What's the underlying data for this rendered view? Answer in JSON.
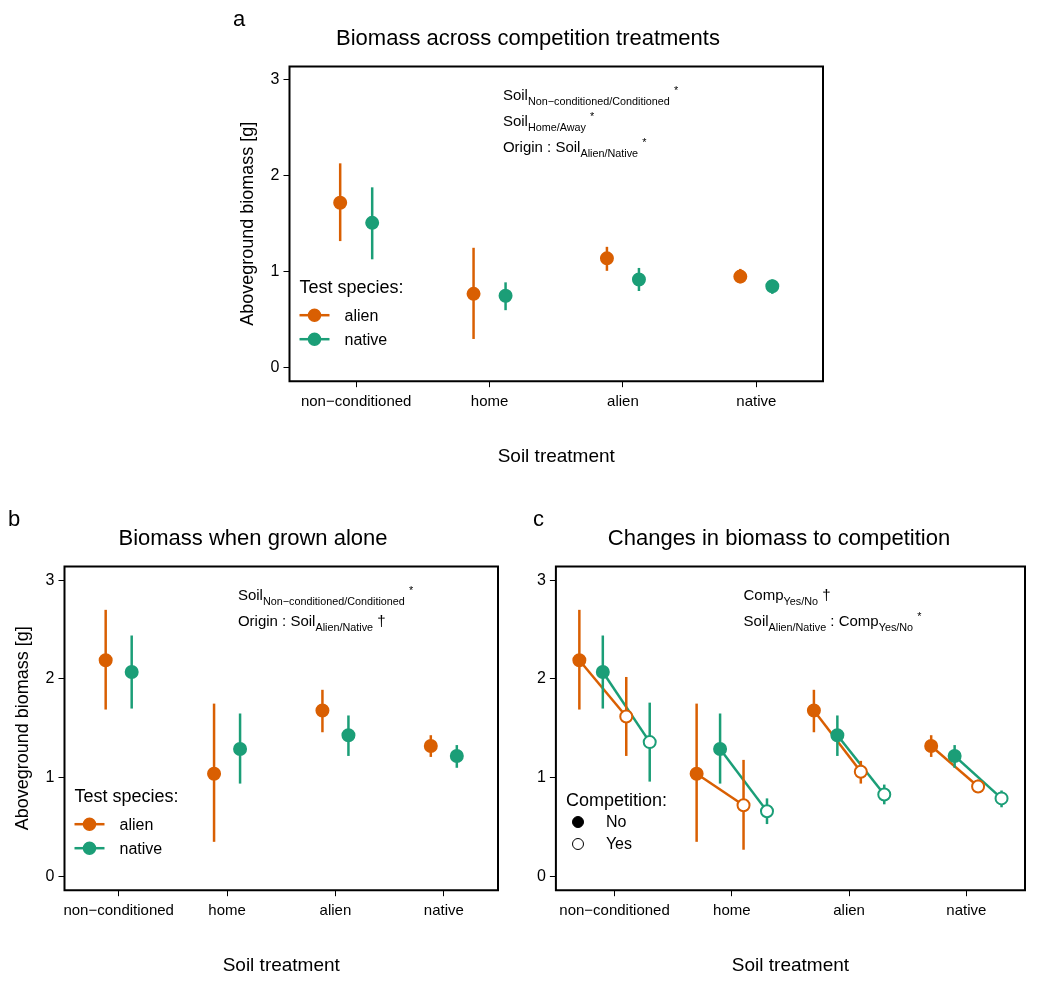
{
  "chart_data": [
    {
      "type": "scatter",
      "title": "Biomass across competition treatments",
      "xlabel": "Soil treatment",
      "ylabel": "Aboveground biomass [g]",
      "legend_title": "Test species:",
      "legend": "bottom left",
      "marker": "circle",
      "annotations": [
        "a",
        "Soil$_{Non−conditioned/Conditioned}$ $^{*}$",
        "Soil$_{Home/Away}$ $^{*}$",
        "Origin : Soil$_{Alien/Native}$ $^{*}$"
      ],
      "categories": [
        "non−conditioned",
        "home",
        "alien",
        "native"
      ],
      "ylim": [
        -0.14,
        3.14
      ],
      "yticks": [
        0,
        1,
        2,
        3
      ],
      "series": [
        {
          "name": "alien",
          "color": "#d95f02",
          "values": [
            1.72,
            0.77,
            1.14,
            0.95
          ],
          "errors": [
            [
              1.32,
              2.13
            ],
            [
              0.3,
              1.25
            ],
            [
              1.01,
              1.26
            ],
            [
              0.88,
              1.03
            ]
          ]
        },
        {
          "name": "native",
          "color": "#1b9e77",
          "values": [
            1.51,
            0.75,
            0.92,
            0.85
          ],
          "errors": [
            [
              1.13,
              1.88
            ],
            [
              0.6,
              0.89
            ],
            [
              0.8,
              1.04
            ],
            [
              0.77,
              0.92
            ]
          ]
        }
      ]
    },
    {
      "type": "scatter",
      "title": "Biomass when grown alone",
      "xlabel": "Soil treatment",
      "ylabel": "Aboveground biomass [g]",
      "legend_title": "Test species:",
      "legend": "bottom left",
      "marker": "circle",
      "annotations": [
        "b",
        "Soil$_{Non−conditioned/Conditioned}$ $^{*}$",
        "Origin : Soil$_{Alien/Native}$ †"
      ],
      "categories": [
        "non−conditioned",
        "home",
        "alien",
        "native"
      ],
      "ylim": [
        -0.14,
        3.14
      ],
      "yticks": [
        0,
        1,
        2,
        3
      ],
      "series": [
        {
          "name": "alien",
          "color": "#d95f02",
          "values": [
            2.19,
            1.04,
            1.68,
            1.32
          ],
          "errors": [
            [
              1.69,
              2.7
            ],
            [
              0.35,
              1.75
            ],
            [
              1.46,
              1.89
            ],
            [
              1.21,
              1.43
            ]
          ]
        },
        {
          "name": "native",
          "color": "#1b9e77",
          "values": [
            2.07,
            1.29,
            1.43,
            1.22
          ],
          "errors": [
            [
              1.7,
              2.44
            ],
            [
              0.94,
              1.65
            ],
            [
              1.22,
              1.63
            ],
            [
              1.1,
              1.33
            ]
          ]
        }
      ]
    },
    {
      "type": "scatter",
      "title": "Changes in biomass to competition",
      "xlabel": "Soil treatment",
      "legend_title": "Competition:",
      "legend": "bottom left",
      "marker": "circle",
      "annotations": [
        "c",
        "Comp$_{Yes/No}$ †",
        "Soil$_{Alien/Native}$ : Comp$_{Yes/No}$ $^{*}$",
        "No",
        "Yes"
      ],
      "categories": [
        "non−conditioned",
        "home",
        "alien",
        "native"
      ],
      "ylim": [
        -0.14,
        3.14
      ],
      "yticks": [
        0,
        1,
        2,
        3
      ],
      "series": [
        {
          "color": "#d95f02",
          "values": [
            2.19,
            1.04,
            1.68,
            1.32
          ],
          "errors": [
            [
              1.69,
              2.7
            ],
            [
              0.35,
              1.75
            ],
            [
              1.46,
              1.89
            ],
            [
              1.21,
              1.43
            ]
          ]
        },
        {
          "color": "#1b9e77",
          "values": [
            2.07,
            1.29,
            1.43,
            1.22
          ],
          "errors": [
            [
              1.7,
              2.44
            ],
            [
              0.94,
              1.65
            ],
            [
              1.22,
              1.63
            ],
            [
              1.1,
              1.33
            ]
          ]
        },
        {
          "color": "#d95f02",
          "values": [
            1.62,
            0.72,
            1.06,
            0.91
          ],
          "errors": [
            [
              1.22,
              2.02
            ],
            [
              0.27,
              1.18
            ],
            [
              0.94,
              1.17
            ],
            [
              0.85,
              0.98
            ]
          ]
        },
        {
          "color": "#1b9e77",
          "values": [
            1.36,
            0.66,
            0.83,
            0.79
          ],
          "errors": [
            [
              0.96,
              1.76
            ],
            [
              0.53,
              0.79
            ],
            [
              0.73,
              0.93
            ],
            [
              0.7,
              0.87
            ]
          ]
        }
      ]
    }
  ]
}
